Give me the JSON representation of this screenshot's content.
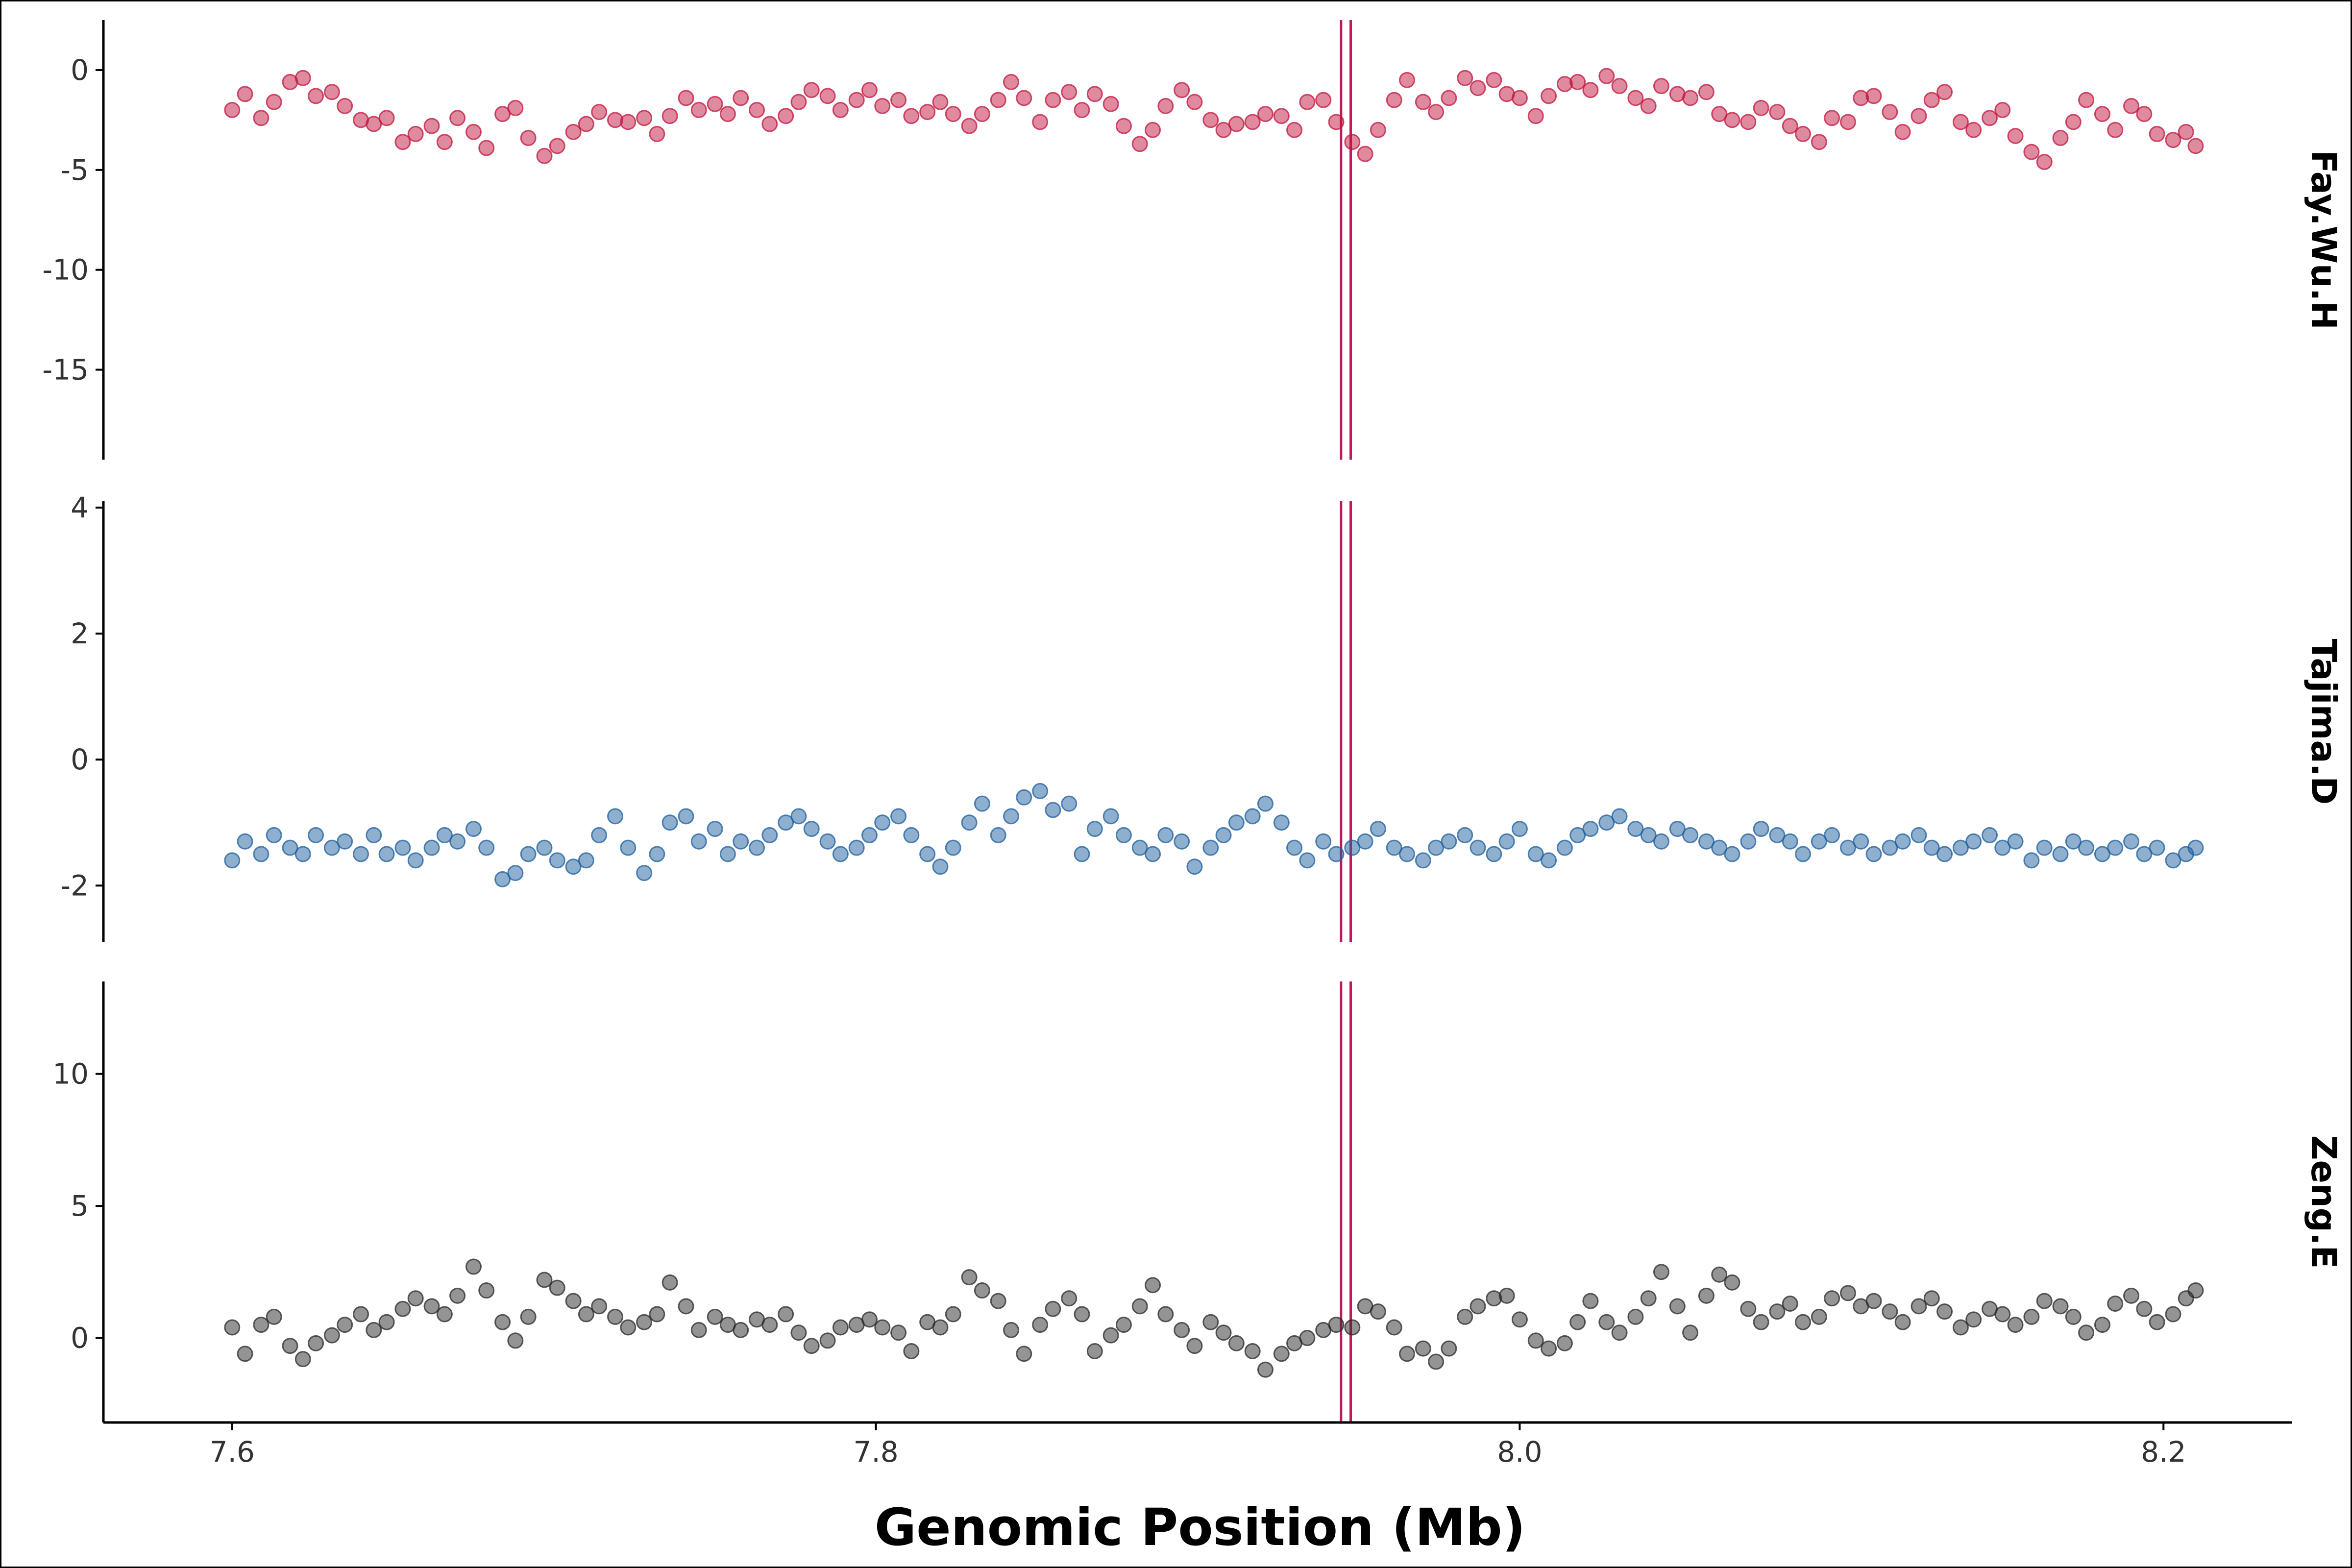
{
  "chart_data": {
    "type": "scatter",
    "title": "",
    "xlabel": "Genomic Position (Mb)",
    "x_ticks": [
      7.6,
      7.8,
      8.0,
      8.2
    ],
    "x_tick_labels": [
      "7.6",
      "7.8",
      "8.0",
      "8.2"
    ],
    "xlim": [
      7.56,
      8.24
    ],
    "grid": false,
    "legend": "none",
    "marker_line_color": "#c2185b",
    "marker_lines_x": [
      7.9445,
      7.9475
    ],
    "facets": [
      {
        "name": "Fay.Wu.H",
        "color": "#c0163d",
        "ylim": [
          -19.5,
          2.5
        ],
        "y_ticks": [
          0,
          -5,
          -10,
          -15
        ],
        "y_tick_labels": [
          "0",
          "-5",
          "-10",
          "-15"
        ],
        "x": [
          7.6,
          7.604,
          7.609,
          7.613,
          7.618,
          7.622,
          7.626,
          7.631,
          7.635,
          7.64,
          7.644,
          7.648,
          7.653,
          7.657,
          7.662,
          7.666,
          7.67,
          7.675,
          7.679,
          7.684,
          7.688,
          7.692,
          7.697,
          7.701,
          7.706,
          7.71,
          7.714,
          7.719,
          7.723,
          7.728,
          7.732,
          7.736,
          7.741,
          7.745,
          7.75,
          7.754,
          7.758,
          7.763,
          7.767,
          7.772,
          7.776,
          7.78,
          7.785,
          7.789,
          7.794,
          7.798,
          7.802,
          7.807,
          7.811,
          7.816,
          7.82,
          7.824,
          7.829,
          7.833,
          7.838,
          7.842,
          7.846,
          7.851,
          7.855,
          7.86,
          7.864,
          7.868,
          7.873,
          7.877,
          7.882,
          7.886,
          7.89,
          7.895,
          7.899,
          7.904,
          7.908,
          7.912,
          7.917,
          7.921,
          7.926,
          7.93,
          7.934,
          7.939,
          7.943,
          7.948,
          7.952,
          7.956,
          7.961,
          7.965,
          7.97,
          7.974,
          7.978,
          7.983,
          7.987,
          7.992,
          7.996,
          8.0,
          8.005,
          8.009,
          8.014,
          8.018,
          8.022,
          8.027,
          8.031,
          8.036,
          8.04,
          8.044,
          8.049,
          8.053,
          8.058,
          8.062,
          8.066,
          8.071,
          8.075,
          8.08,
          8.084,
          8.088,
          8.093,
          8.097,
          8.102,
          8.106,
          8.11,
          8.115,
          8.119,
          8.124,
          8.128,
          8.132,
          8.137,
          8.141,
          8.146,
          8.15,
          8.154,
          8.159,
          8.163,
          8.168,
          8.172,
          8.176,
          8.181,
          8.185,
          8.19,
          8.194,
          8.198,
          8.203,
          8.207,
          8.21
        ],
        "y": [
          -2.0,
          -1.2,
          -2.4,
          -1.6,
          -0.6,
          -0.4,
          -1.3,
          -1.1,
          -1.8,
          -2.5,
          -2.7,
          -2.4,
          -3.6,
          -3.2,
          -2.8,
          -3.6,
          -2.4,
          -3.1,
          -3.9,
          -2.2,
          -1.9,
          -3.4,
          -4.3,
          -3.8,
          -3.1,
          -2.7,
          -2.1,
          -2.5,
          -2.6,
          -2.4,
          -3.2,
          -2.3,
          -1.4,
          -2.0,
          -1.7,
          -2.2,
          -1.4,
          -2.0,
          -2.7,
          -2.3,
          -1.6,
          -1.0,
          -1.3,
          -2.0,
          -1.5,
          -1.0,
          -1.8,
          -1.5,
          -2.3,
          -2.1,
          -1.6,
          -2.2,
          -2.8,
          -2.2,
          -1.5,
          -0.6,
          -1.4,
          -2.6,
          -1.5,
          -1.1,
          -2.0,
          -1.2,
          -1.7,
          -2.8,
          -3.7,
          -3.0,
          -1.8,
          -1.0,
          -1.6,
          -2.5,
          -3.0,
          -2.7,
          -2.6,
          -2.2,
          -2.3,
          -3.0,
          -1.6,
          -1.5,
          -2.6,
          -3.6,
          -4.2,
          -3.0,
          -1.5,
          -0.5,
          -1.6,
          -2.1,
          -1.4,
          -0.4,
          -0.9,
          -0.5,
          -1.2,
          -1.4,
          -2.3,
          -1.3,
          -0.7,
          -0.6,
          -1.0,
          -0.3,
          -0.8,
          -1.4,
          -1.8,
          -0.8,
          -1.2,
          -1.4,
          -1.1,
          -2.2,
          -2.5,
          -2.6,
          -1.9,
          -2.1,
          -2.8,
          -3.2,
          -3.6,
          -2.4,
          -2.6,
          -1.4,
          -1.3,
          -2.1,
          -3.1,
          -2.3,
          -1.5,
          -1.1,
          -2.6,
          -3.0,
          -2.4,
          -2.0,
          -3.3,
          -4.1,
          -4.6,
          -3.4,
          -2.6,
          -1.5,
          -2.2,
          -3.0,
          -1.8,
          -2.2,
          -3.2,
          -3.5,
          -3.1,
          -3.8
        ]
      },
      {
        "name": "Tajima.D",
        "color": "#1f5f9e",
        "ylim": [
          -2.9,
          4.1
        ],
        "y_ticks": [
          4,
          2,
          0,
          -2
        ],
        "y_tick_labels": [
          "4",
          "2",
          "0",
          "-2"
        ],
        "x": [
          7.6,
          7.604,
          7.609,
          7.613,
          7.618,
          7.622,
          7.626,
          7.631,
          7.635,
          7.64,
          7.644,
          7.648,
          7.653,
          7.657,
          7.662,
          7.666,
          7.67,
          7.675,
          7.679,
          7.684,
          7.688,
          7.692,
          7.697,
          7.701,
          7.706,
          7.71,
          7.714,
          7.719,
          7.723,
          7.728,
          7.732,
          7.736,
          7.741,
          7.745,
          7.75,
          7.754,
          7.758,
          7.763,
          7.767,
          7.772,
          7.776,
          7.78,
          7.785,
          7.789,
          7.794,
          7.798,
          7.802,
          7.807,
          7.811,
          7.816,
          7.82,
          7.824,
          7.829,
          7.833,
          7.838,
          7.842,
          7.846,
          7.851,
          7.855,
          7.86,
          7.864,
          7.868,
          7.873,
          7.877,
          7.882,
          7.886,
          7.89,
          7.895,
          7.899,
          7.904,
          7.908,
          7.912,
          7.917,
          7.921,
          7.926,
          7.93,
          7.934,
          7.939,
          7.943,
          7.948,
          7.952,
          7.956,
          7.961,
          7.965,
          7.97,
          7.974,
          7.978,
          7.983,
          7.987,
          7.992,
          7.996,
          8.0,
          8.005,
          8.009,
          8.014,
          8.018,
          8.022,
          8.027,
          8.031,
          8.036,
          8.04,
          8.044,
          8.049,
          8.053,
          8.058,
          8.062,
          8.066,
          8.071,
          8.075,
          8.08,
          8.084,
          8.088,
          8.093,
          8.097,
          8.102,
          8.106,
          8.11,
          8.115,
          8.119,
          8.124,
          8.128,
          8.132,
          8.137,
          8.141,
          8.146,
          8.15,
          8.154,
          8.159,
          8.163,
          8.168,
          8.172,
          8.176,
          8.181,
          8.185,
          8.19,
          8.194,
          8.198,
          8.203,
          8.207,
          8.21
        ],
        "y": [
          -1.6,
          -1.3,
          -1.5,
          -1.2,
          -1.4,
          -1.5,
          -1.2,
          -1.4,
          -1.3,
          -1.5,
          -1.2,
          -1.5,
          -1.4,
          -1.6,
          -1.4,
          -1.2,
          -1.3,
          -1.1,
          -1.4,
          -1.9,
          -1.8,
          -1.5,
          -1.4,
          -1.6,
          -1.7,
          -1.6,
          -1.2,
          -0.9,
          -1.4,
          -1.8,
          -1.5,
          -1.0,
          -0.9,
          -1.3,
          -1.1,
          -1.5,
          -1.3,
          -1.4,
          -1.2,
          -1.0,
          -0.9,
          -1.1,
          -1.3,
          -1.5,
          -1.4,
          -1.2,
          -1.0,
          -0.9,
          -1.2,
          -1.5,
          -1.7,
          -1.4,
          -1.0,
          -0.7,
          -1.2,
          -0.9,
          -0.6,
          -0.5,
          -0.8,
          -0.7,
          -1.5,
          -1.1,
          -0.9,
          -1.2,
          -1.4,
          -1.5,
          -1.2,
          -1.3,
          -1.7,
          -1.4,
          -1.2,
          -1.0,
          -0.9,
          -0.7,
          -1.0,
          -1.4,
          -1.6,
          -1.3,
          -1.5,
          -1.4,
          -1.3,
          -1.1,
          -1.4,
          -1.5,
          -1.6,
          -1.4,
          -1.3,
          -1.2,
          -1.4,
          -1.5,
          -1.3,
          -1.1,
          -1.5,
          -1.6,
          -1.4,
          -1.2,
          -1.1,
          -1.0,
          -0.9,
          -1.1,
          -1.2,
          -1.3,
          -1.1,
          -1.2,
          -1.3,
          -1.4,
          -1.5,
          -1.3,
          -1.1,
          -1.2,
          -1.3,
          -1.5,
          -1.3,
          -1.2,
          -1.4,
          -1.3,
          -1.5,
          -1.4,
          -1.3,
          -1.2,
          -1.4,
          -1.5,
          -1.4,
          -1.3,
          -1.2,
          -1.4,
          -1.3,
          -1.6,
          -1.4,
          -1.5,
          -1.3,
          -1.4,
          -1.5,
          -1.4,
          -1.3,
          -1.5,
          -1.4,
          -1.6,
          -1.5,
          -1.4
        ]
      },
      {
        "name": "Zeng.E",
        "color": "#2a2a2a",
        "ylim": [
          -3.2,
          13.5
        ],
        "y_ticks": [
          10,
          5,
          0
        ],
        "y_tick_labels": [
          "10",
          "5",
          "0"
        ],
        "x": [
          7.6,
          7.604,
          7.609,
          7.613,
          7.618,
          7.622,
          7.626,
          7.631,
          7.635,
          7.64,
          7.644,
          7.648,
          7.653,
          7.657,
          7.662,
          7.666,
          7.67,
          7.675,
          7.679,
          7.684,
          7.688,
          7.692,
          7.697,
          7.701,
          7.706,
          7.71,
          7.714,
          7.719,
          7.723,
          7.728,
          7.732,
          7.736,
          7.741,
          7.745,
          7.75,
          7.754,
          7.758,
          7.763,
          7.767,
          7.772,
          7.776,
          7.78,
          7.785,
          7.789,
          7.794,
          7.798,
          7.802,
          7.807,
          7.811,
          7.816,
          7.82,
          7.824,
          7.829,
          7.833,
          7.838,
          7.842,
          7.846,
          7.851,
          7.855,
          7.86,
          7.864,
          7.868,
          7.873,
          7.877,
          7.882,
          7.886,
          7.89,
          7.895,
          7.899,
          7.904,
          7.908,
          7.912,
          7.917,
          7.921,
          7.926,
          7.93,
          7.934,
          7.939,
          7.943,
          7.948,
          7.952,
          7.956,
          7.961,
          7.965,
          7.97,
          7.974,
          7.978,
          7.983,
          7.987,
          7.992,
          7.996,
          8.0,
          8.005,
          8.009,
          8.014,
          8.018,
          8.022,
          8.027,
          8.031,
          8.036,
          8.04,
          8.044,
          8.049,
          8.053,
          8.058,
          8.062,
          8.066,
          8.071,
          8.075,
          8.08,
          8.084,
          8.088,
          8.093,
          8.097,
          8.102,
          8.106,
          8.11,
          8.115,
          8.119,
          8.124,
          8.128,
          8.132,
          8.137,
          8.141,
          8.146,
          8.15,
          8.154,
          8.159,
          8.163,
          8.168,
          8.172,
          8.176,
          8.181,
          8.185,
          8.19,
          8.194,
          8.198,
          8.203,
          8.207,
          8.21
        ],
        "y": [
          0.4,
          -0.6,
          0.5,
          0.8,
          -0.3,
          -0.8,
          -0.2,
          0.1,
          0.5,
          0.9,
          0.3,
          0.6,
          1.1,
          1.5,
          1.2,
          0.9,
          1.6,
          2.7,
          1.8,
          0.6,
          -0.1,
          0.8,
          2.2,
          1.9,
          1.4,
          0.9,
          1.2,
          0.8,
          0.4,
          0.6,
          0.9,
          2.1,
          1.2,
          0.3,
          0.8,
          0.5,
          0.3,
          0.7,
          0.5,
          0.9,
          0.2,
          -0.3,
          -0.1,
          0.4,
          0.5,
          0.7,
          0.4,
          0.2,
          -0.5,
          0.6,
          0.4,
          0.9,
          2.3,
          1.8,
          1.4,
          0.3,
          -0.6,
          0.5,
          1.1,
          1.5,
          0.9,
          -0.5,
          0.1,
          0.5,
          1.2,
          2.0,
          0.9,
          0.3,
          -0.3,
          0.6,
          0.2,
          -0.2,
          -0.5,
          -1.2,
          -0.6,
          -0.2,
          0.0,
          0.3,
          0.5,
          0.4,
          1.2,
          1.0,
          0.4,
          -0.6,
          -0.4,
          -0.9,
          -0.4,
          0.8,
          1.2,
          1.5,
          1.6,
          0.7,
          -0.1,
          -0.4,
          -0.2,
          0.6,
          1.4,
          0.6,
          0.2,
          0.8,
          1.5,
          2.5,
          1.2,
          0.2,
          1.6,
          2.4,
          2.1,
          1.1,
          0.6,
          1.0,
          1.3,
          0.6,
          0.8,
          1.5,
          1.7,
          1.2,
          1.4,
          1.0,
          0.6,
          1.2,
          1.5,
          1.0,
          0.4,
          0.7,
          1.1,
          0.9,
          0.5,
          0.8,
          1.4,
          1.2,
          0.8,
          0.2,
          0.5,
          1.3,
          1.6,
          1.1,
          0.6,
          0.9,
          1.5,
          1.8
        ]
      }
    ]
  }
}
